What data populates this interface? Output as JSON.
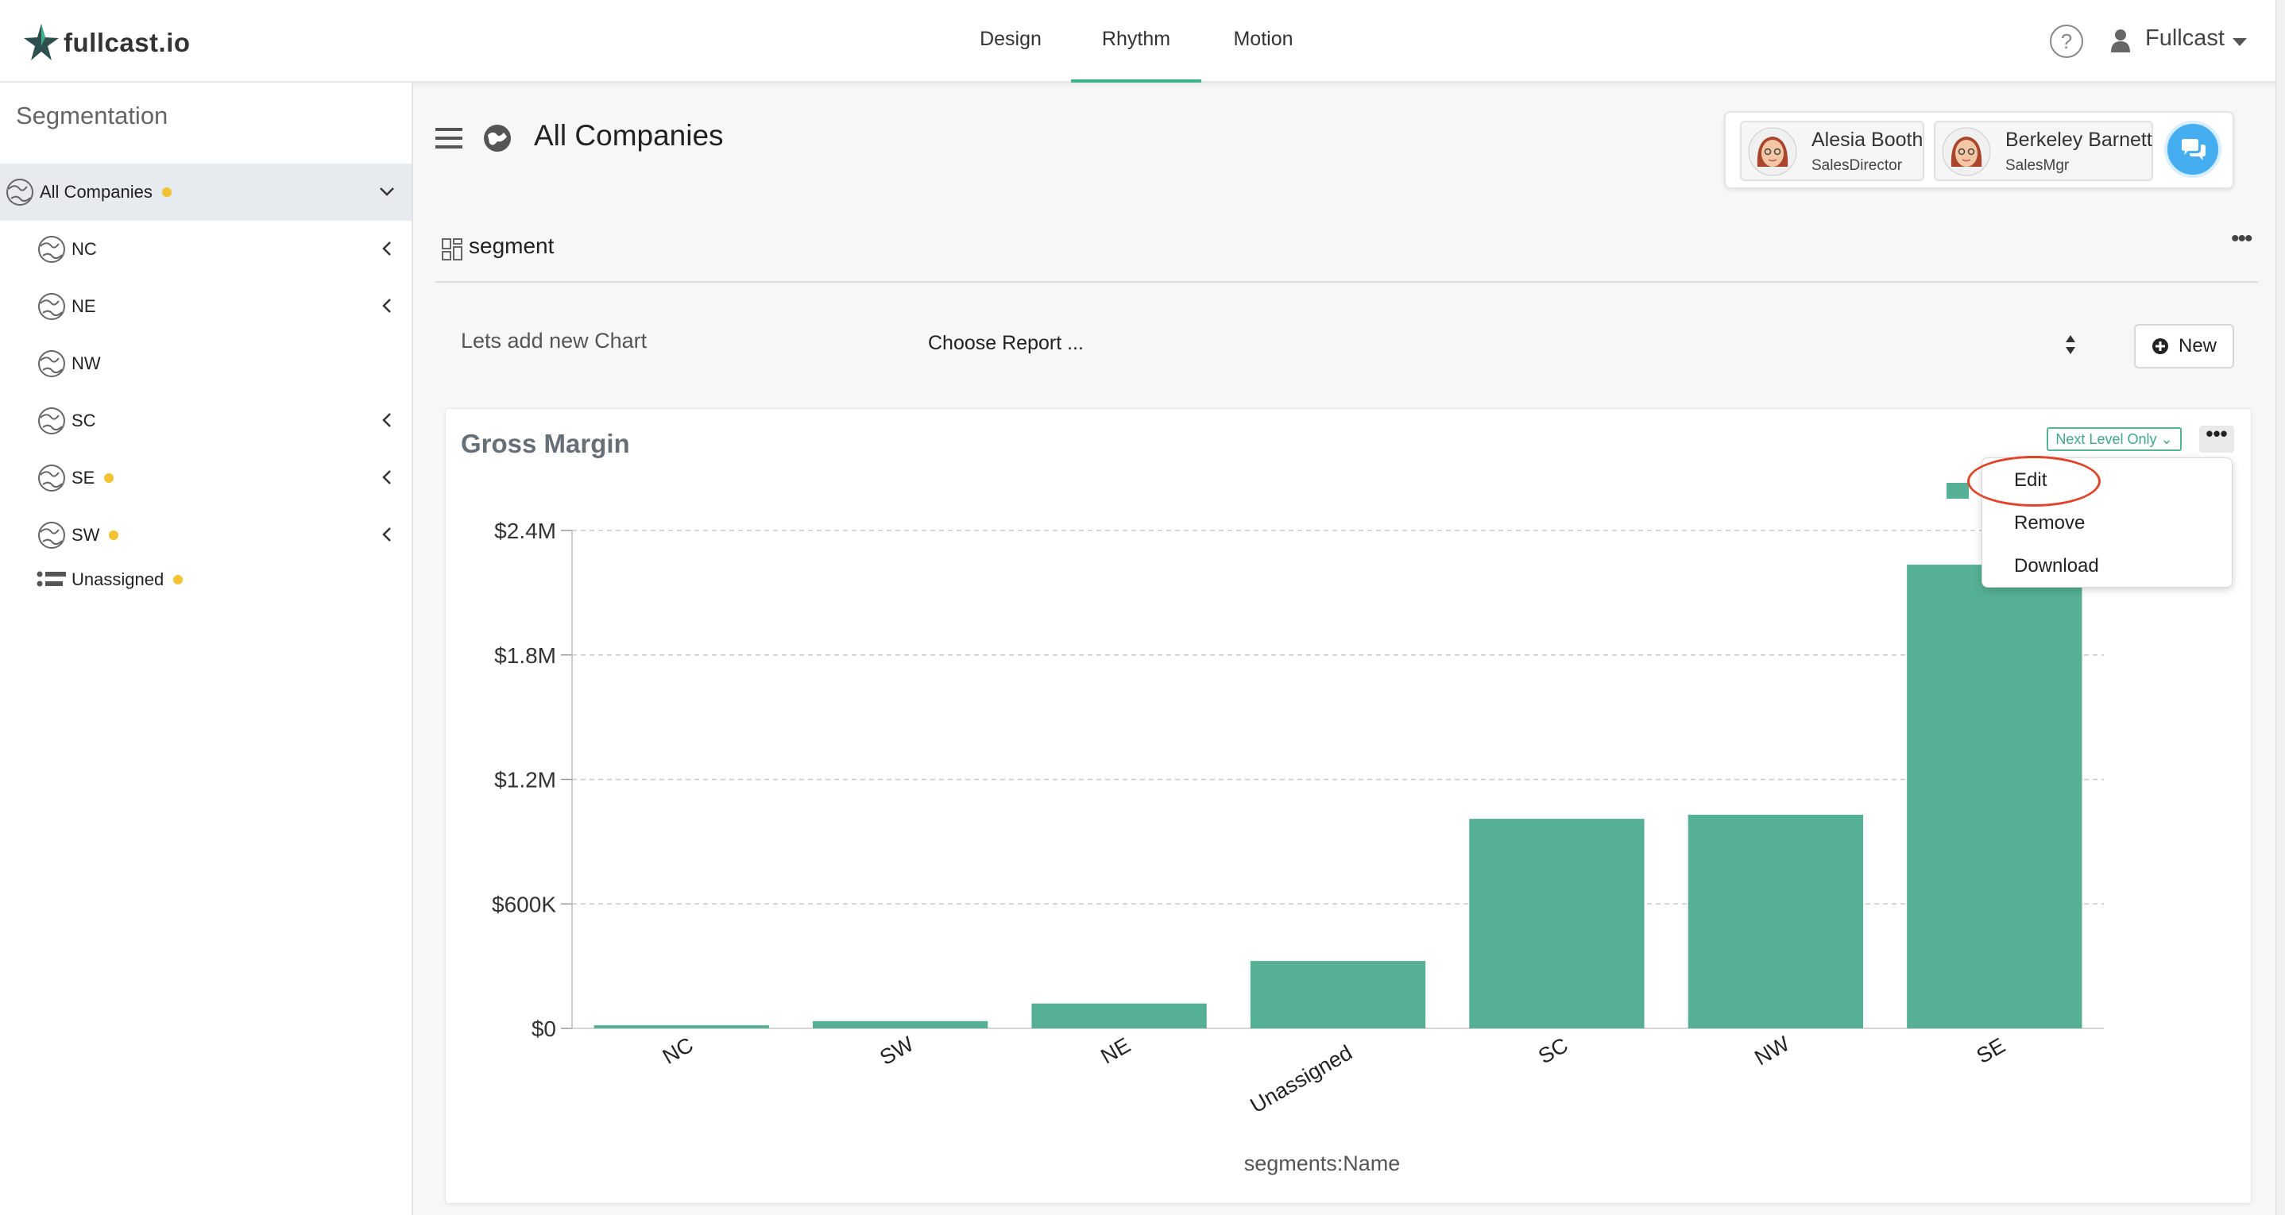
{
  "app": {
    "logo_text": "fullcast.io"
  },
  "nav": {
    "tabs": [
      "Design",
      "Rhythm",
      "Motion"
    ],
    "active": "Rhythm"
  },
  "header": {
    "help_symbol": "?",
    "user_name": "Fullcast"
  },
  "sidebar": {
    "title": "Segmentation",
    "items": [
      {
        "label": "All Companies",
        "dot": true,
        "chevron": "down",
        "selected": true
      },
      {
        "label": "NC",
        "dot": false,
        "chevron": "left"
      },
      {
        "label": "NE",
        "dot": false,
        "chevron": "left"
      },
      {
        "label": "NW",
        "dot": false,
        "chevron": "none"
      },
      {
        "label": "SC",
        "dot": false,
        "chevron": "left"
      },
      {
        "label": "SE",
        "dot": true,
        "chevron": "left"
      },
      {
        "label": "SW",
        "dot": true,
        "chevron": "left"
      },
      {
        "label": "Unassigned",
        "dot": true,
        "chevron": "none"
      }
    ]
  },
  "main": {
    "title": "All Companies",
    "people": [
      {
        "name": "Alesia Booth",
        "role": "SalesDirector"
      },
      {
        "name": "Berkeley Barnett",
        "role": "SalesMgr"
      }
    ],
    "section_name": "segment",
    "add_chart_label": "Lets add new Chart",
    "report_select": "Choose Report ...",
    "new_button": "New"
  },
  "card": {
    "title": "Gross Margin",
    "level_badge": "Next Level Only ⌄",
    "menu": [
      "Edit",
      "Remove",
      "Download"
    ],
    "highlighted_menu_item": "Edit"
  },
  "colors": {
    "accent": "#3fae8a",
    "bar": "#56b095",
    "status_dot": "#f2c230",
    "chat": "#45aef0",
    "annotation": "#e0442b"
  },
  "chart_data": {
    "type": "bar",
    "title": "Gross Margin",
    "categories": [
      "NC",
      "SW",
      "NE",
      "Unassigned",
      "SC",
      "NW",
      "SE"
    ],
    "values": [
      15000,
      35000,
      120000,
      325000,
      1010000,
      1030000,
      2235000
    ],
    "xlabel": "segments:Name",
    "ylabel": "",
    "yticks": [
      0,
      600000,
      1200000,
      1800000,
      2400000
    ],
    "ytick_labels": [
      "$0",
      "$600K",
      "$1.2M",
      "$1.8M",
      "$2.4M"
    ],
    "ylim": [
      0,
      2400000
    ],
    "grid": true
  }
}
